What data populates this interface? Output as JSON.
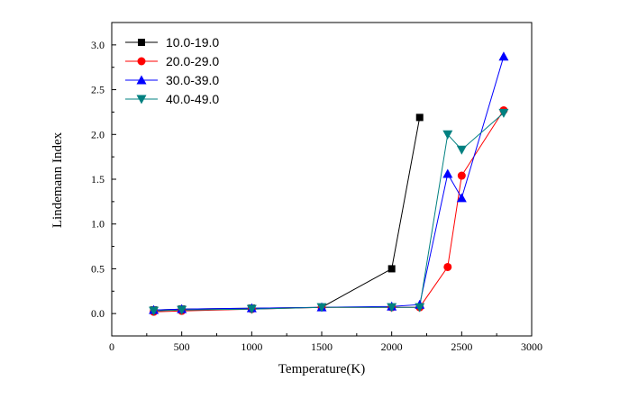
{
  "chart_data": {
    "type": "line",
    "title": "",
    "xlabel": "Temperature(K)",
    "ylabel": "Lindemann Index",
    "xlim": [
      0,
      3000
    ],
    "ylim": [
      -0.25,
      3.25
    ],
    "xticks": [
      0,
      500,
      1000,
      1500,
      2000,
      2500,
      3000
    ],
    "xtick_labels": [
      "0",
      "500",
      "1000",
      "1500",
      "2000",
      "2500",
      "3000"
    ],
    "yticks": [
      0,
      0.5,
      1.0,
      1.5,
      2.0,
      2.5,
      3.0
    ],
    "ytick_labels": [
      "0.0",
      "0.5",
      "1.0",
      "1.5",
      "2.0",
      "2.5",
      "3.0"
    ],
    "grid": false,
    "legend_position": "top-left",
    "series": [
      {
        "name": "10.0-19.0",
        "color": "#000000",
        "marker": "square",
        "x": [
          300,
          500,
          1000,
          1500,
          2000,
          2200
        ],
        "y": [
          0.04,
          0.05,
          0.06,
          0.07,
          0.5,
          2.19
        ]
      },
      {
        "name": "20.0-29.0",
        "color": "#ff0000",
        "marker": "circle",
        "x": [
          300,
          500,
          1000,
          1500,
          2000,
          2200,
          2400,
          2500,
          2800
        ],
        "y": [
          0.02,
          0.03,
          0.05,
          0.07,
          0.07,
          0.07,
          0.52,
          1.54,
          2.27
        ]
      },
      {
        "name": "30.0-39.0",
        "color": "#0000ff",
        "marker": "triangle-up",
        "x": [
          300,
          500,
          1000,
          1500,
          2000,
          2200,
          2400,
          2500,
          2800
        ],
        "y": [
          0.04,
          0.05,
          0.06,
          0.07,
          0.08,
          0.1,
          1.56,
          1.29,
          2.87
        ]
      },
      {
        "name": "40.0-49.0",
        "color": "#008080",
        "marker": "triangle-down",
        "x": [
          300,
          500,
          1000,
          1500,
          2000,
          2200,
          2400,
          2500,
          2800
        ],
        "y": [
          0.03,
          0.04,
          0.05,
          0.07,
          0.07,
          0.07,
          2.0,
          1.83,
          2.24
        ]
      }
    ]
  }
}
